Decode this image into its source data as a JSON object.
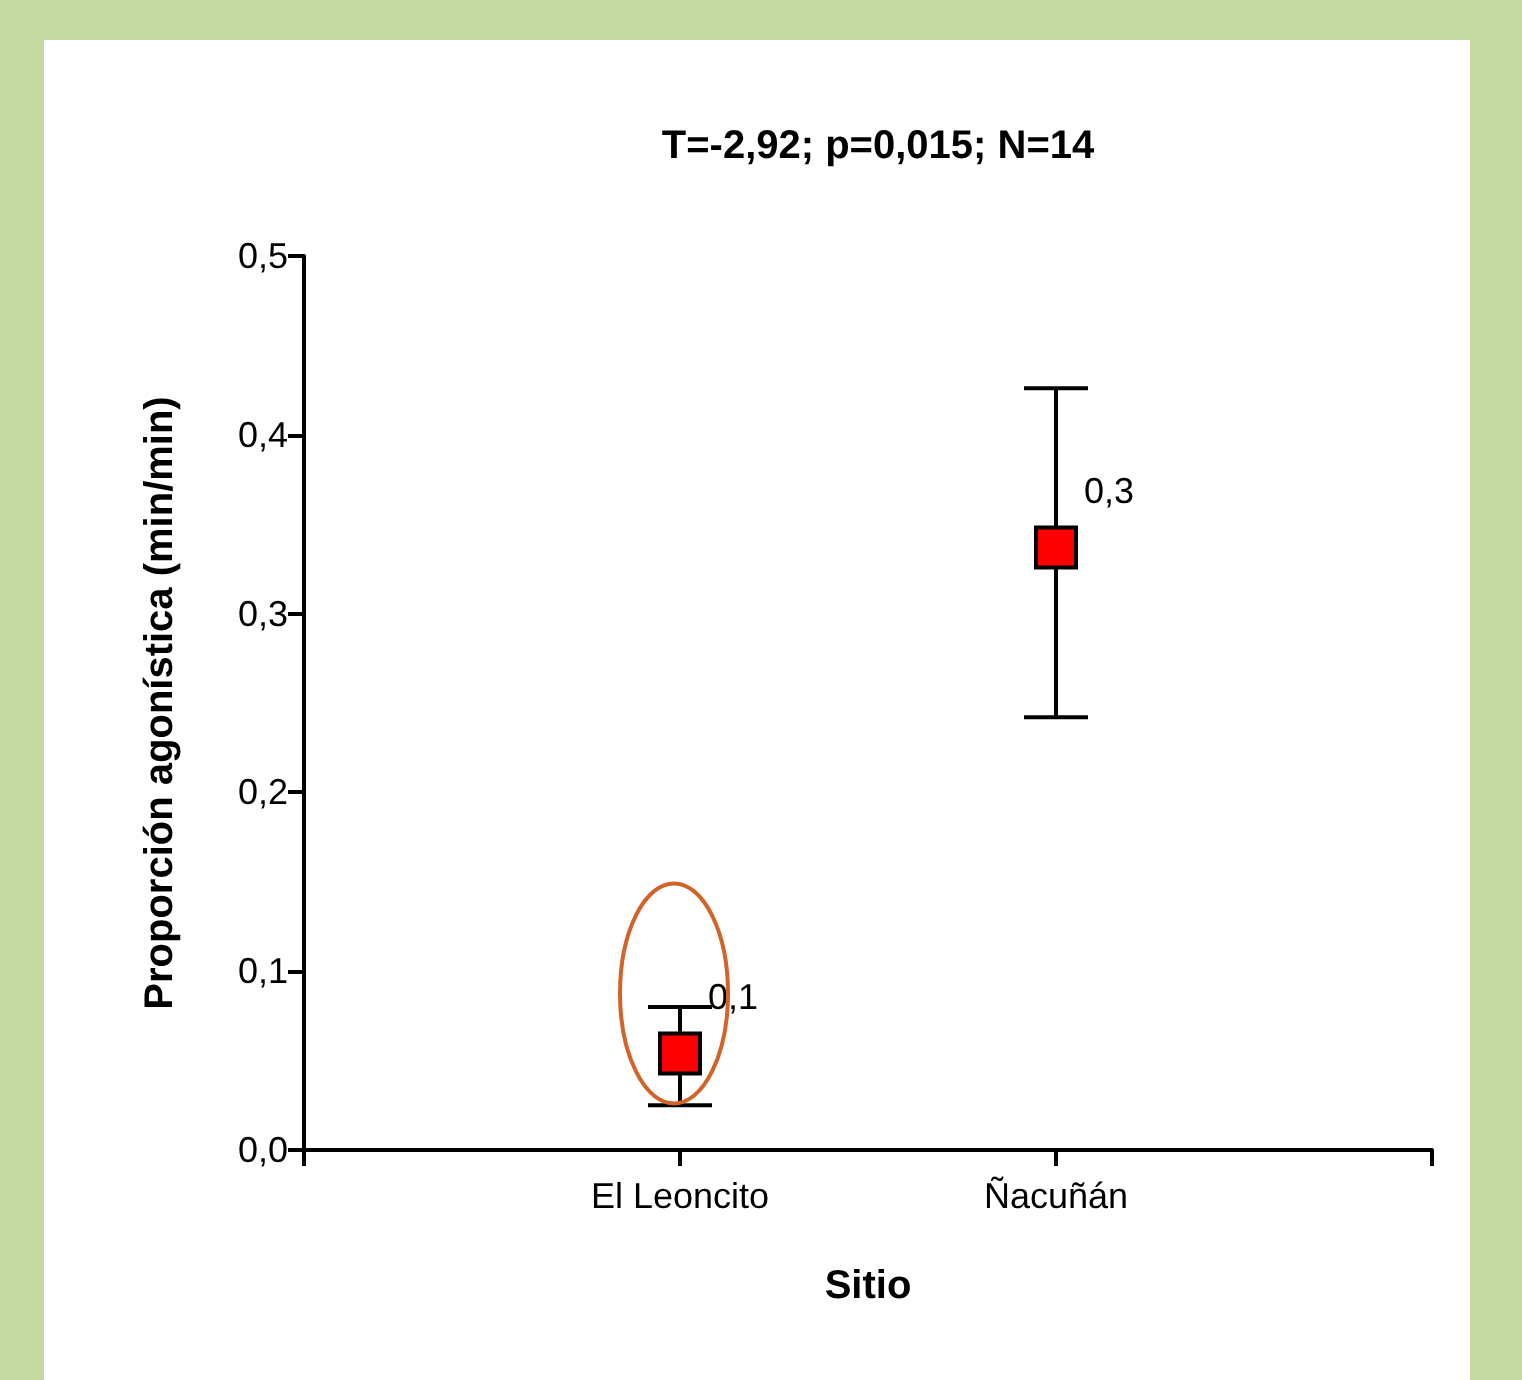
{
  "chart_data": {
    "type": "scatter",
    "title": "T=-2,92; p=0,015; N=14",
    "xlabel": "Sitio",
    "ylabel": "Proporción agonística (min/min)",
    "categories": [
      null,
      "El Leoncito",
      "Ñacuñán",
      null
    ],
    "values": [
      null,
      0.054,
      0.337,
      null
    ],
    "errors": [
      null,
      [
        0.025,
        0.08
      ],
      [
        0.242,
        0.426
      ],
      null
    ],
    "value_labels": [
      null,
      "0,1",
      "0,3",
      null
    ],
    "color": "#ff0000",
    "marker": "square",
    "ylim": [
      0,
      0.5
    ],
    "yticks": [
      {
        "value": 0,
        "label": "0,0"
      },
      {
        "value": 0.1,
        "label": "0,1"
      },
      {
        "value": 0.2,
        "label": "0,2"
      },
      {
        "value": 0.3,
        "label": "0,3"
      },
      {
        "value": 0.4,
        "label": "0,4"
      },
      {
        "value": 0.5,
        "label": "0,5"
      }
    ]
  }
}
